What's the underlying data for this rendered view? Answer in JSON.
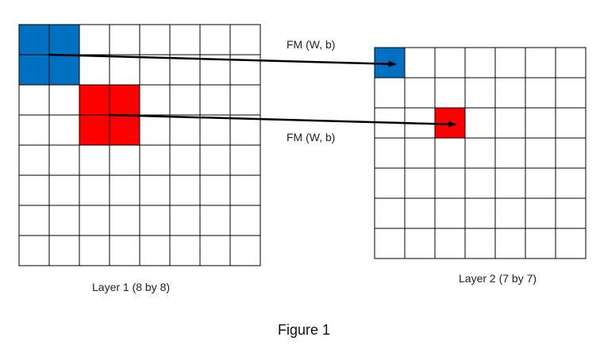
{
  "diagram": {
    "layer1": {
      "label": "Layer 1 (8 by 8)",
      "rows": 8,
      "cols": 8,
      "highlights": [
        {
          "name": "blue-receptive-field",
          "row": 0,
          "col": 0,
          "size": 2,
          "color": "#0070C0"
        },
        {
          "name": "red-receptive-field",
          "row": 2,
          "col": 2,
          "size": 2,
          "color": "#FF0000"
        }
      ]
    },
    "layer2": {
      "label": "Layer 2 (7 by 7)",
      "rows": 7,
      "cols": 7,
      "highlights": [
        {
          "name": "blue-output-cell",
          "row": 0,
          "col": 0,
          "size": 1,
          "color": "#0070C0"
        },
        {
          "name": "red-output-cell",
          "row": 2,
          "col": 2,
          "size": 1,
          "color": "#FF0000"
        }
      ]
    },
    "arrows": [
      {
        "label": "FM (W, b)",
        "from": "blue-receptive-field",
        "to": "blue-output-cell"
      },
      {
        "label": "FM (W, b)",
        "from": "red-receptive-field",
        "to": "red-output-cell"
      }
    ],
    "caption": "Figure 1"
  }
}
